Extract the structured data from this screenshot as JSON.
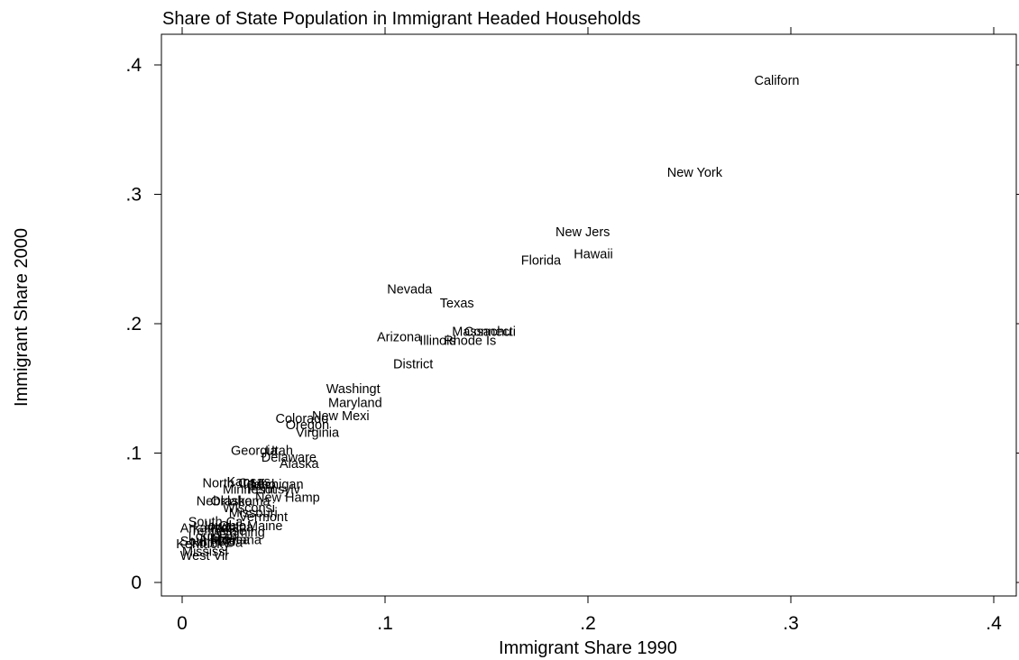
{
  "chart_data": {
    "type": "scatter",
    "title": "Share of State Population in Immigrant Headed Households",
    "xlabel": "Immigrant Share 1990",
    "ylabel": "Immigrant Share 2000",
    "xlim": [
      0,
      0.4
    ],
    "ylim": [
      0,
      0.4
    ],
    "grid": false,
    "marker": "label-only",
    "x_ticks": [
      {
        "value": 0,
        "label": "0"
      },
      {
        "value": 0.1,
        "label": ".1"
      },
      {
        "value": 0.2,
        "label": ".2"
      },
      {
        "value": 0.3,
        "label": ".3"
      },
      {
        "value": 0.4,
        "label": ".4"
      }
    ],
    "y_ticks": [
      {
        "value": 0,
        "label": "0"
      },
      {
        "value": 0.1,
        "label": ".1"
      },
      {
        "value": 0.2,
        "label": ".2"
      },
      {
        "value": 0.3,
        "label": ".3"
      },
      {
        "value": 0.4,
        "label": ".4"
      }
    ],
    "points": [
      {
        "label": "Californ",
        "x": 0.282,
        "y": 0.388
      },
      {
        "label": "New York",
        "x": 0.239,
        "y": 0.317
      },
      {
        "label": "New Jers",
        "x": 0.184,
        "y": 0.271
      },
      {
        "label": "Hawaii",
        "x": 0.193,
        "y": 0.254
      },
      {
        "label": "Florida",
        "x": 0.167,
        "y": 0.249
      },
      {
        "label": "Nevada",
        "x": 0.101,
        "y": 0.227
      },
      {
        "label": "Texas",
        "x": 0.127,
        "y": 0.216
      },
      {
        "label": "Massachu",
        "x": 0.133,
        "y": 0.194
      },
      {
        "label": "Connecti",
        "x": 0.139,
        "y": 0.194
      },
      {
        "label": "Arizona",
        "x": 0.096,
        "y": 0.19
      },
      {
        "label": "Illinois",
        "x": 0.117,
        "y": 0.187
      },
      {
        "label": "Rhode Is",
        "x": 0.129,
        "y": 0.187
      },
      {
        "label": "District",
        "x": 0.104,
        "y": 0.169
      },
      {
        "label": "Washingt",
        "x": 0.071,
        "y": 0.15
      },
      {
        "label": "Maryland",
        "x": 0.072,
        "y": 0.139
      },
      {
        "label": "New Mexi",
        "x": 0.064,
        "y": 0.129
      },
      {
        "label": "Colorado",
        "x": 0.046,
        "y": 0.127
      },
      {
        "label": "Oregon",
        "x": 0.051,
        "y": 0.122
      },
      {
        "label": "Virginia",
        "x": 0.056,
        "y": 0.116
      },
      {
        "label": "Georgia",
        "x": 0.024,
        "y": 0.102
      },
      {
        "label": "Utah",
        "x": 0.041,
        "y": 0.102
      },
      {
        "label": "Delaware",
        "x": 0.039,
        "y": 0.097
      },
      {
        "label": "Alaska",
        "x": 0.048,
        "y": 0.092
      },
      {
        "label": "North Ca",
        "x": 0.01,
        "y": 0.077
      },
      {
        "label": "Kansas",
        "x": 0.022,
        "y": 0.078
      },
      {
        "label": "Idaho",
        "x": 0.03,
        "y": 0.076
      },
      {
        "label": "Michigan",
        "x": 0.034,
        "y": 0.076
      },
      {
        "label": "Minnesot",
        "x": 0.02,
        "y": 0.072
      },
      {
        "label": "Pennsylv",
        "x": 0.032,
        "y": 0.072
      },
      {
        "label": "New Hamp",
        "x": 0.036,
        "y": 0.066
      },
      {
        "label": "Nebraska",
        "x": 0.007,
        "y": 0.063
      },
      {
        "label": "Oklahoma",
        "x": 0.014,
        "y": 0.063
      },
      {
        "label": "Wisconsi",
        "x": 0.02,
        "y": 0.058
      },
      {
        "label": "Missouri",
        "x": 0.023,
        "y": 0.054
      },
      {
        "label": "Vermont",
        "x": 0.028,
        "y": 0.051
      },
      {
        "label": "South Ca",
        "x": 0.003,
        "y": 0.047
      },
      {
        "label": "Iowa",
        "x": 0.011,
        "y": 0.044
      },
      {
        "label": "Ohio",
        "x": 0.018,
        "y": 0.044
      },
      {
        "label": "Indiana",
        "x": 0.014,
        "y": 0.043
      },
      {
        "label": "Maine",
        "x": 0.032,
        "y": 0.044
      },
      {
        "label": "Arkansas",
        "x": -0.001,
        "y": 0.042
      },
      {
        "label": "Tennesse",
        "x": 0.004,
        "y": 0.04
      },
      {
        "label": "Wyoming",
        "x": 0.014,
        "y": 0.039
      },
      {
        "label": "Louisian",
        "x": 0.003,
        "y": 0.036
      },
      {
        "label": "Alabama",
        "x": 0.008,
        "y": 0.033
      },
      {
        "label": "Montana",
        "x": 0.014,
        "y": 0.033
      },
      {
        "label": "South Da",
        "x": -0.001,
        "y": 0.032
      },
      {
        "label": "North Da",
        "x": 0.004,
        "y": 0.031
      },
      {
        "label": "Kentucky",
        "x": -0.003,
        "y": 0.03
      },
      {
        "label": "Mississi",
        "x": 0.0,
        "y": 0.024
      },
      {
        "label": "West Vir",
        "x": -0.001,
        "y": 0.021
      }
    ]
  }
}
